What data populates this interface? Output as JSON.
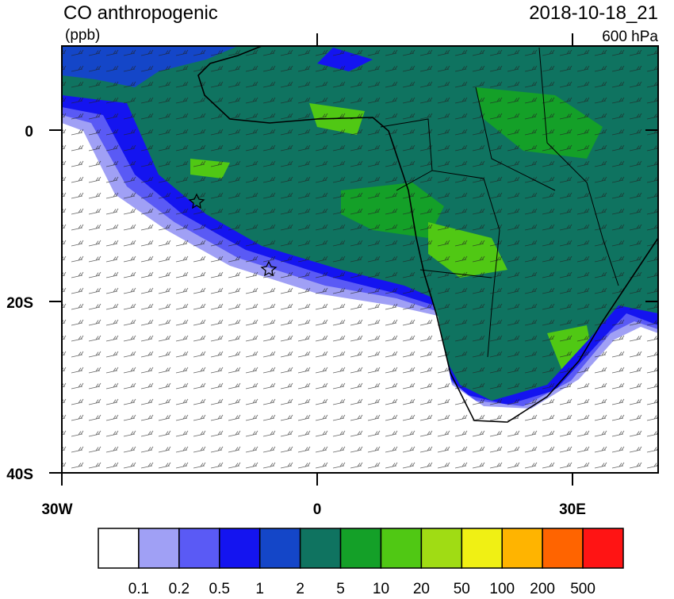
{
  "header": {
    "title": "CO anthropogenic",
    "units": "(ppb)",
    "time": "2018-10-18_21",
    "level": "600 hPa"
  },
  "map": {
    "lat_labels": [
      "0",
      "20S",
      "40S"
    ],
    "lon_labels": [
      "30W",
      "0",
      "30E"
    ]
  },
  "colorbar": {
    "colors": [
      "#ffffff",
      "#a0a0f5",
      "#5a5af5",
      "#1414f0",
      "#1446c8",
      "#0f7360",
      "#14a028",
      "#50c814",
      "#a0dc14",
      "#f0f014",
      "#ffb400",
      "#ff6400",
      "#ff1414"
    ],
    "labels": [
      "0.1",
      "0.2",
      "0.5",
      "1",
      "2",
      "5",
      "10",
      "20",
      "50",
      "100",
      "200",
      "500"
    ]
  }
}
